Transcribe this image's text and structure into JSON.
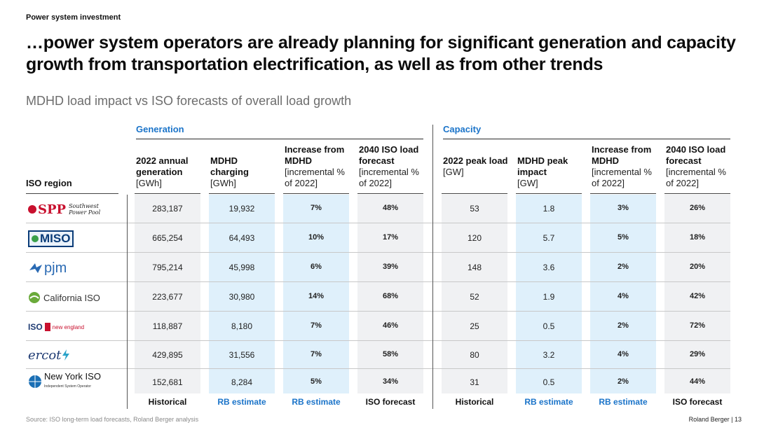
{
  "header": {
    "topic": "Power system investment",
    "headline": "…power system operators are already planning for significant generation and capacity growth from transportation electrification, as well as from other trends",
    "subtitle": "MDHD load impact vs ISO forecasts of overall load growth"
  },
  "sections": {
    "generation": "Generation",
    "capacity": "Capacity"
  },
  "iso_header": "ISO region",
  "columns": [
    {
      "title": "2022 annual generation",
      "unit": "[GWh]"
    },
    {
      "title": "MDHD charging",
      "unit": "[GWh]"
    },
    {
      "title": "Increase from MDHD",
      "unit": "[incremental % of 2022]"
    },
    {
      "title": "2040 ISO load forecast",
      "unit": "[incremental % of 2022]"
    },
    {
      "title": "2022 peak load",
      "unit": "[GW]"
    },
    {
      "title": "MDHD peak impact",
      "unit": "[GW]"
    },
    {
      "title": "Increase from MDHD",
      "unit": "[incremental % of 2022]"
    },
    {
      "title": "2040 ISO load forecast",
      "unit": "[incremental % of 2022]"
    }
  ],
  "rows": [
    {
      "region": "SPP Southwest Power Pool",
      "values": [
        "283,187",
        "19,932",
        "7%",
        "48%",
        "53",
        "1.8",
        "3%",
        "26%"
      ]
    },
    {
      "region": "MISO",
      "values": [
        "665,254",
        "64,493",
        "10%",
        "17%",
        "120",
        "5.7",
        "5%",
        "18%"
      ]
    },
    {
      "region": "pjm",
      "values": [
        "795,214",
        "45,998",
        "6%",
        "39%",
        "148",
        "3.6",
        "2%",
        "20%"
      ]
    },
    {
      "region": "California ISO",
      "values": [
        "223,677",
        "30,980",
        "14%",
        "68%",
        "52",
        "1.9",
        "4%",
        "42%"
      ]
    },
    {
      "region": "ISO new england",
      "values": [
        "118,887",
        "8,180",
        "7%",
        "46%",
        "25",
        "0.5",
        "2%",
        "72%"
      ]
    },
    {
      "region": "ercot",
      "values": [
        "429,895",
        "31,556",
        "7%",
        "58%",
        "80",
        "3.2",
        "4%",
        "29%"
      ]
    },
    {
      "region": "New York ISO Independent System Operator",
      "values": [
        "152,681",
        "8,284",
        "5%",
        "34%",
        "31",
        "0.5",
        "2%",
        "44%"
      ]
    }
  ],
  "footer_labels": [
    "Historical",
    "RB estimate",
    "RB estimate",
    "ISO forecast",
    "Historical",
    "RB estimate",
    "RB estimate",
    "ISO forecast"
  ],
  "footer": {
    "source": "Source: ISO long-term load forecasts, Roland Berger analysis",
    "page": "Roland Berger  |  13"
  },
  "logos": {
    "spp_mark": "SPP",
    "spp_line1": "Southwest",
    "spp_line2": "Power Pool",
    "miso": "MISO",
    "pjm": "pjm",
    "caiso": "California ISO",
    "ne_iso": "ISO",
    "ne_rest": "new england",
    "ercot": "ercot",
    "nyiso": "New York ISO",
    "nyiso_sub": "Independent System Operator"
  },
  "colors": {
    "accent": "#1b74c9",
    "estimate_bg": "#dff0fb",
    "plain_bg": "#f0f1f3"
  }
}
